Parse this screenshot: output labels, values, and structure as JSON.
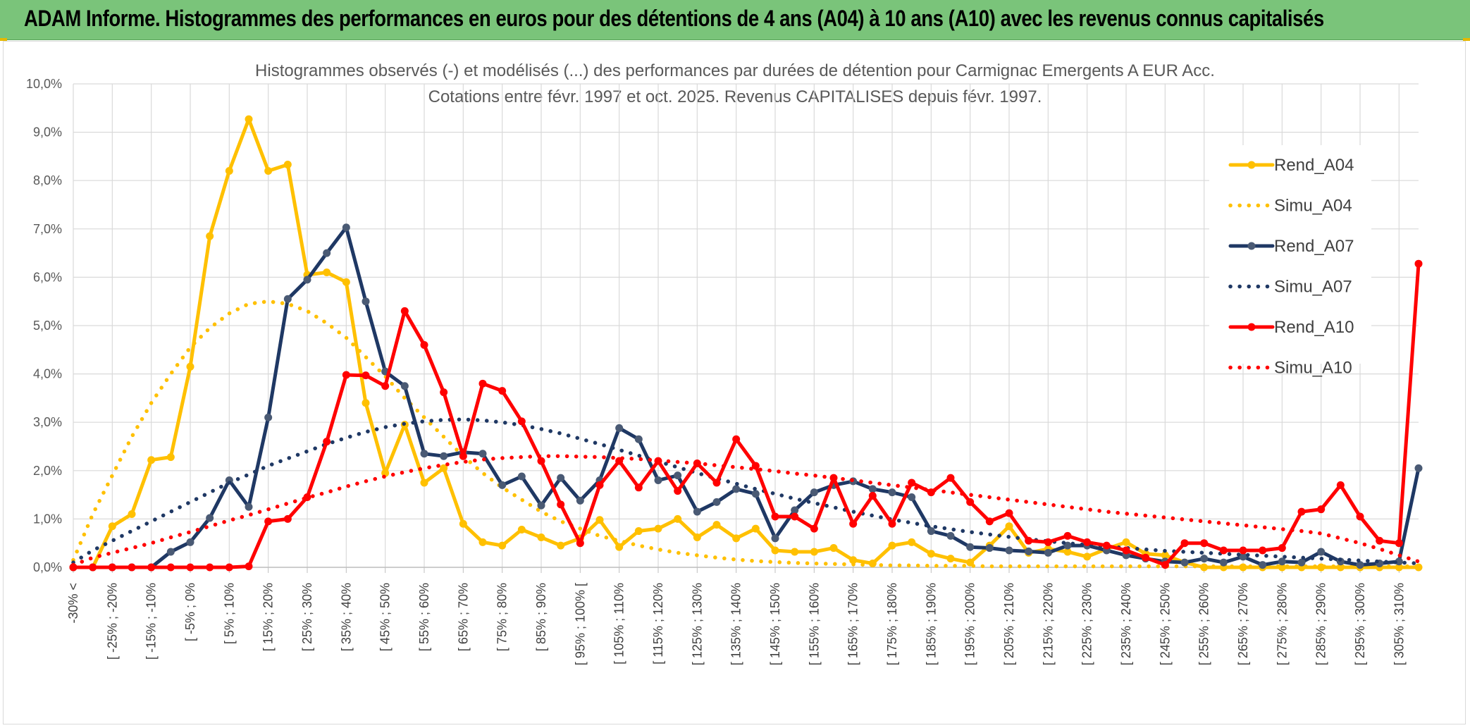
{
  "header": {
    "title": "ADAM Informe. Histogrammes des performances en euros pour des détentions de 4 ans (A04) à 10 ans (A10) avec les revenus connus capitalisés"
  },
  "colors": {
    "header_bg": "#7ac47a",
    "a04": "#ffc000",
    "a07": "#1f3864",
    "a10": "#ff0000",
    "grid": "#d9d9d9"
  },
  "chart_data": {
    "type": "line",
    "title": "Histogrammes observés (-) et modélisés (...) des performances par durées de détention pour Carmignac Emergents A EUR Acc.",
    "subtitle": "Cotations entre févr. 1997 et oct. 2025. Revenus CAPITALISES depuis févr. 1997.",
    "ylim": [
      0,
      10
    ],
    "y_ticks": [
      "0,0%",
      "1,0%",
      "2,0%",
      "3,0%",
      "4,0%",
      "5,0%",
      "6,0%",
      "7,0%",
      "8,0%",
      "9,0%",
      "10,0%"
    ],
    "x_tick_labels": [
      "-30% <",
      "[ -25% ; -20%",
      "[ -15% ; -10%",
      "[ -5% ; 0%",
      "[ 5% ; 10%",
      "[ 15% ; 20%",
      "[ 25% ; 30%",
      "[ 35% ; 40%",
      "[ 45% ; 50%",
      "[ 55% ; 60%",
      "[ 65% ; 70%",
      "[ 75% ; 80%",
      "[ 85% ; 90%",
      "[ 95% ; 100% [",
      "[ 105% ; 110%",
      "[ 115% ; 120%",
      "[ 125% ; 130%",
      "[ 135% ; 140%",
      "[ 145% ; 150%",
      "[ 155% ; 160%",
      "[ 165% ; 170%",
      "[ 175% ; 180%",
      "[ 185% ; 190%",
      "[ 195% ; 200%",
      "[ 205% ; 210%",
      "[ 215% ; 220%",
      "[ 225% ; 230%",
      "[ 235% ; 240%",
      "[ 245% ; 250%",
      "[ 255% ; 260%",
      "[ 265% ; 270%",
      "[ 275% ; 280%",
      "[ 285% ; 290%",
      "[ 295% ; 300%",
      "[ 305% ; 310%"
    ],
    "n_points": 70,
    "legend_position": "right",
    "grid": true,
    "series": [
      {
        "name": "Rend_A04",
        "style": "solid",
        "color": "#ffc000",
        "values": [
          0,
          0,
          0.85,
          1.1,
          2.22,
          2.28,
          4.15,
          6.85,
          8.2,
          9.27,
          8.2,
          8.33,
          6.05,
          6.1,
          5.9,
          3.4,
          1.95,
          2.95,
          1.75,
          2.05,
          0.9,
          0.52,
          0.45,
          0.78,
          0.62,
          0.45,
          0.6,
          0.98,
          0.42,
          0.75,
          0.8,
          1.0,
          0.62,
          0.88,
          0.6,
          0.8,
          0.35,
          0.32,
          0.32,
          0.4,
          0.15,
          0.08,
          0.45,
          0.52,
          0.28,
          0.18,
          0.1,
          0.45,
          0.85,
          0.3,
          0.38,
          0.32,
          0.22,
          0.38,
          0.52,
          0.28,
          0.25,
          0.1,
          0,
          0,
          0,
          0,
          0,
          0,
          0,
          0,
          0,
          0,
          0,
          0
        ]
      },
      {
        "name": "Simu_A04",
        "style": "dotted",
        "color": "#ffc000",
        "values": [
          0.15,
          1.1,
          1.9,
          2.7,
          3.4,
          4.0,
          4.55,
          4.95,
          5.25,
          5.45,
          5.5,
          5.45,
          5.3,
          5.05,
          4.75,
          4.35,
          3.95,
          3.5,
          3.1,
          2.7,
          2.3,
          1.95,
          1.65,
          1.4,
          1.15,
          0.95,
          0.8,
          0.65,
          0.55,
          0.45,
          0.37,
          0.3,
          0.25,
          0.2,
          0.16,
          0.13,
          0.11,
          0.09,
          0.08,
          0.07,
          0.06,
          0.05,
          0.04,
          0.04,
          0.03,
          0.03,
          0.03,
          0.02,
          0.02,
          0.02,
          0.02,
          0.02,
          0.02,
          0.02,
          0.02,
          0.02,
          0.02,
          0.02,
          0.02,
          0.02,
          0.02,
          0.02,
          0.02,
          0.02,
          0.02,
          0.02,
          0.02,
          0.02,
          0.02,
          0.02
        ]
      },
      {
        "name": "Rend_A07",
        "style": "solid",
        "color": "#1f3864",
        "values": [
          0,
          0,
          0,
          0,
          0,
          0.32,
          0.52,
          1.02,
          1.8,
          1.25,
          3.1,
          5.55,
          5.95,
          6.5,
          7.03,
          5.5,
          4.05,
          3.75,
          2.35,
          2.3,
          2.38,
          2.35,
          1.7,
          1.88,
          1.28,
          1.85,
          1.38,
          1.8,
          2.88,
          2.65,
          1.8,
          1.9,
          1.15,
          1.35,
          1.62,
          1.52,
          0.6,
          1.18,
          1.55,
          1.7,
          1.78,
          1.62,
          1.55,
          1.45,
          0.75,
          0.65,
          0.42,
          0.4,
          0.35,
          0.33,
          0.3,
          0.45,
          0.45,
          0.35,
          0.25,
          0.18,
          0.12,
          0.1,
          0.18,
          0.1,
          0.22,
          0.05,
          0.12,
          0.1,
          0.32,
          0.12,
          0.05,
          0.08,
          0.12,
          2.05
        ]
      },
      {
        "name": "Simu_A07",
        "style": "dotted",
        "color": "#1f3864",
        "values": [
          0.1,
          0.35,
          0.55,
          0.75,
          0.95,
          1.15,
          1.35,
          1.55,
          1.75,
          1.92,
          2.1,
          2.25,
          2.4,
          2.55,
          2.68,
          2.8,
          2.9,
          2.97,
          3.02,
          3.05,
          3.06,
          3.04,
          3.0,
          2.94,
          2.86,
          2.77,
          2.66,
          2.55,
          2.43,
          2.31,
          2.19,
          2.07,
          1.95,
          1.84,
          1.73,
          1.62,
          1.52,
          1.42,
          1.33,
          1.24,
          1.15,
          1.07,
          0.99,
          0.92,
          0.85,
          0.79,
          0.73,
          0.68,
          0.63,
          0.58,
          0.54,
          0.5,
          0.46,
          0.43,
          0.4,
          0.37,
          0.34,
          0.32,
          0.3,
          0.28,
          0.26,
          0.24,
          0.22,
          0.2,
          0.18,
          0.16,
          0.14,
          0.12,
          0.1,
          0.08
        ]
      },
      {
        "name": "Rend_A10",
        "style": "solid",
        "color": "#ff0000",
        "values": [
          0,
          0,
          0,
          0,
          0,
          0,
          0,
          0,
          0,
          0.02,
          0.95,
          1.0,
          1.45,
          2.6,
          3.98,
          3.97,
          3.75,
          5.3,
          4.6,
          3.62,
          2.3,
          3.8,
          3.65,
          3.02,
          2.2,
          1.3,
          0.5,
          1.7,
          2.2,
          1.65,
          2.2,
          1.58,
          2.15,
          1.75,
          2.65,
          2.1,
          1.05,
          1.05,
          0.8,
          1.85,
          0.9,
          1.48,
          0.9,
          1.75,
          1.55,
          1.85,
          1.35,
          0.95,
          1.12,
          0.55,
          0.52,
          0.65,
          0.52,
          0.45,
          0.35,
          0.2,
          0.05,
          0.5,
          0.5,
          0.35,
          0.35,
          0.35,
          0.4,
          1.15,
          1.2,
          1.7,
          1.05,
          0.55,
          0.5,
          6.28
        ]
      },
      {
        "name": "Simu_A10",
        "style": "dotted",
        "color": "#ff0000",
        "values": [
          0.05,
          0.2,
          0.3,
          0.4,
          0.5,
          0.62,
          0.73,
          0.85,
          0.97,
          1.08,
          1.2,
          1.32,
          1.44,
          1.55,
          1.67,
          1.78,
          1.88,
          1.97,
          2.05,
          2.12,
          2.18,
          2.23,
          2.26,
          2.28,
          2.3,
          2.3,
          2.29,
          2.28,
          2.26,
          2.24,
          2.21,
          2.18,
          2.15,
          2.11,
          2.07,
          2.03,
          1.99,
          1.94,
          1.9,
          1.85,
          1.8,
          1.75,
          1.7,
          1.65,
          1.6,
          1.55,
          1.5,
          1.45,
          1.4,
          1.35,
          1.3,
          1.25,
          1.2,
          1.15,
          1.11,
          1.07,
          1.03,
          0.99,
          0.95,
          0.91,
          0.87,
          0.83,
          0.79,
          0.75,
          0.7,
          0.6,
          0.5,
          0.38,
          0.25,
          0.12
        ]
      }
    ]
  }
}
